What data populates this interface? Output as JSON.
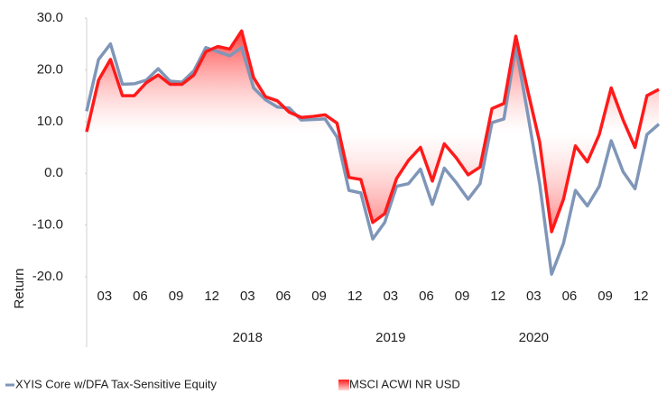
{
  "chart_data": {
    "type": "line",
    "categories": [
      null,
      "03",
      null,
      null,
      "06",
      null,
      null,
      "09",
      null,
      null,
      "12",
      null,
      null,
      "03",
      null,
      null,
      "06",
      null,
      null,
      "09",
      null,
      null,
      "12",
      null,
      null,
      "03",
      null,
      null,
      "06",
      null,
      null,
      "09",
      null,
      null,
      "12",
      null,
      null,
      "03",
      null,
      null,
      "06",
      null,
      null,
      "09",
      null,
      null,
      "12",
      null,
      null
    ],
    "year_labels": [
      null,
      null,
      null,
      null,
      null,
      null,
      null,
      null,
      null,
      null,
      null,
      null,
      null,
      "2018",
      null,
      null,
      null,
      null,
      null,
      null,
      null,
      null,
      null,
      null,
      null,
      "2019",
      null,
      null,
      null,
      null,
      null,
      null,
      null,
      null,
      null,
      null,
      null,
      "2020",
      null,
      null,
      null,
      null,
      null,
      null,
      null,
      null,
      null,
      null,
      null
    ],
    "series": [
      {
        "name": "XYIS Core w/DFA Tax-Sensitive Equity",
        "color": "#7f96b8",
        "values": [
          12,
          22,
          25,
          17.2,
          17.3,
          18,
          20.2,
          17.8,
          17.6,
          19.8,
          24.3,
          23.5,
          22.7,
          24.3,
          16.5,
          14.2,
          12.8,
          12.6,
          10.3,
          10.4,
          10.5,
          7,
          -3.3,
          -3.8,
          -12.7,
          -9.5,
          -2.5,
          -2,
          0.8,
          -6,
          1,
          -1.8,
          -5,
          -2,
          9.8,
          10.5,
          24.5,
          11.5,
          -2,
          -19.5,
          -13.5,
          -3.3,
          -6.3,
          -2.5,
          6.3,
          0.3,
          -3,
          7.5,
          9.5
        ]
      },
      {
        "name": "MSCI ACWI NR USD",
        "color": "#ff1a1a",
        "area": true,
        "values": [
          8,
          18,
          22,
          15,
          15,
          17.5,
          19,
          17.2,
          17.2,
          19,
          23.5,
          24.5,
          24,
          27.5,
          18.5,
          14.8,
          14,
          11.8,
          10.8,
          11,
          11.3,
          9.7,
          -0.8,
          -1.2,
          -9.5,
          -7.8,
          -1,
          2.5,
          5,
          -1.5,
          5.7,
          3,
          -0.3,
          1.2,
          12.5,
          13.5,
          26.5,
          16,
          6,
          -11.3,
          -5,
          5.3,
          2.2,
          7.5,
          16.5,
          10.3,
          5,
          15,
          16.2
        ]
      }
    ],
    "area_baseline": 7.8,
    "ylabel": "Return",
    "ylim": [
      -20,
      30
    ],
    "yticks": [
      {
        "value": -20,
        "label": "-20.0"
      },
      {
        "value": -10,
        "label": "-10.0"
      },
      {
        "value": 0,
        "label": "0.0"
      },
      {
        "value": 10,
        "label": "10.0"
      },
      {
        "value": 20,
        "label": "20.0"
      },
      {
        "value": 30,
        "label": "30.0"
      }
    ],
    "legend": "bottom"
  }
}
